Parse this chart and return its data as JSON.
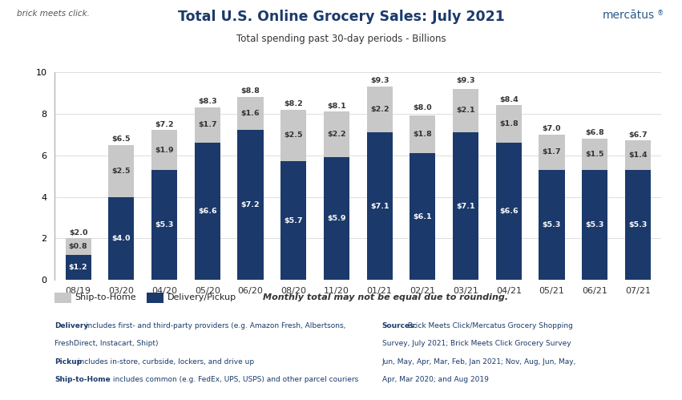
{
  "title": "Total U.S. Online Grocery Sales: July 2021",
  "subtitle": "Total spending past 30-day periods - Billions",
  "categories": [
    "08/19",
    "03/20",
    "04/20",
    "05/20",
    "06/20",
    "08/20",
    "11/20",
    "01/21",
    "02/21",
    "03/21",
    "04/21",
    "05/21",
    "06/21",
    "07/21"
  ],
  "delivery_pickup": [
    1.2,
    4.0,
    5.3,
    6.6,
    7.2,
    5.7,
    5.9,
    7.1,
    6.1,
    7.1,
    6.6,
    5.3,
    5.3,
    5.3
  ],
  "ship_to_home": [
    0.8,
    2.5,
    1.9,
    1.7,
    1.6,
    2.5,
    2.2,
    2.2,
    1.8,
    2.1,
    1.8,
    1.7,
    1.5,
    1.4
  ],
  "totals": [
    2.0,
    6.5,
    7.2,
    8.3,
    8.8,
    8.2,
    8.1,
    9.3,
    8.0,
    9.3,
    8.4,
    7.0,
    6.8,
    6.7
  ],
  "delivery_color": "#1b3a6b",
  "ship_color": "#c8c8c8",
  "bar_width": 0.6,
  "ylim": [
    0,
    10
  ],
  "yticks": [
    0,
    2,
    4,
    6,
    8,
    10
  ],
  "legend_ship": "Ship-to-Home",
  "legend_delivery": "Delivery/Pickup",
  "legend_note": "Monthly total may not be equal due to rounding.",
  "background_color": "#ffffff",
  "title_color": "#1b3a6b",
  "text_color": "#1b3a6b"
}
